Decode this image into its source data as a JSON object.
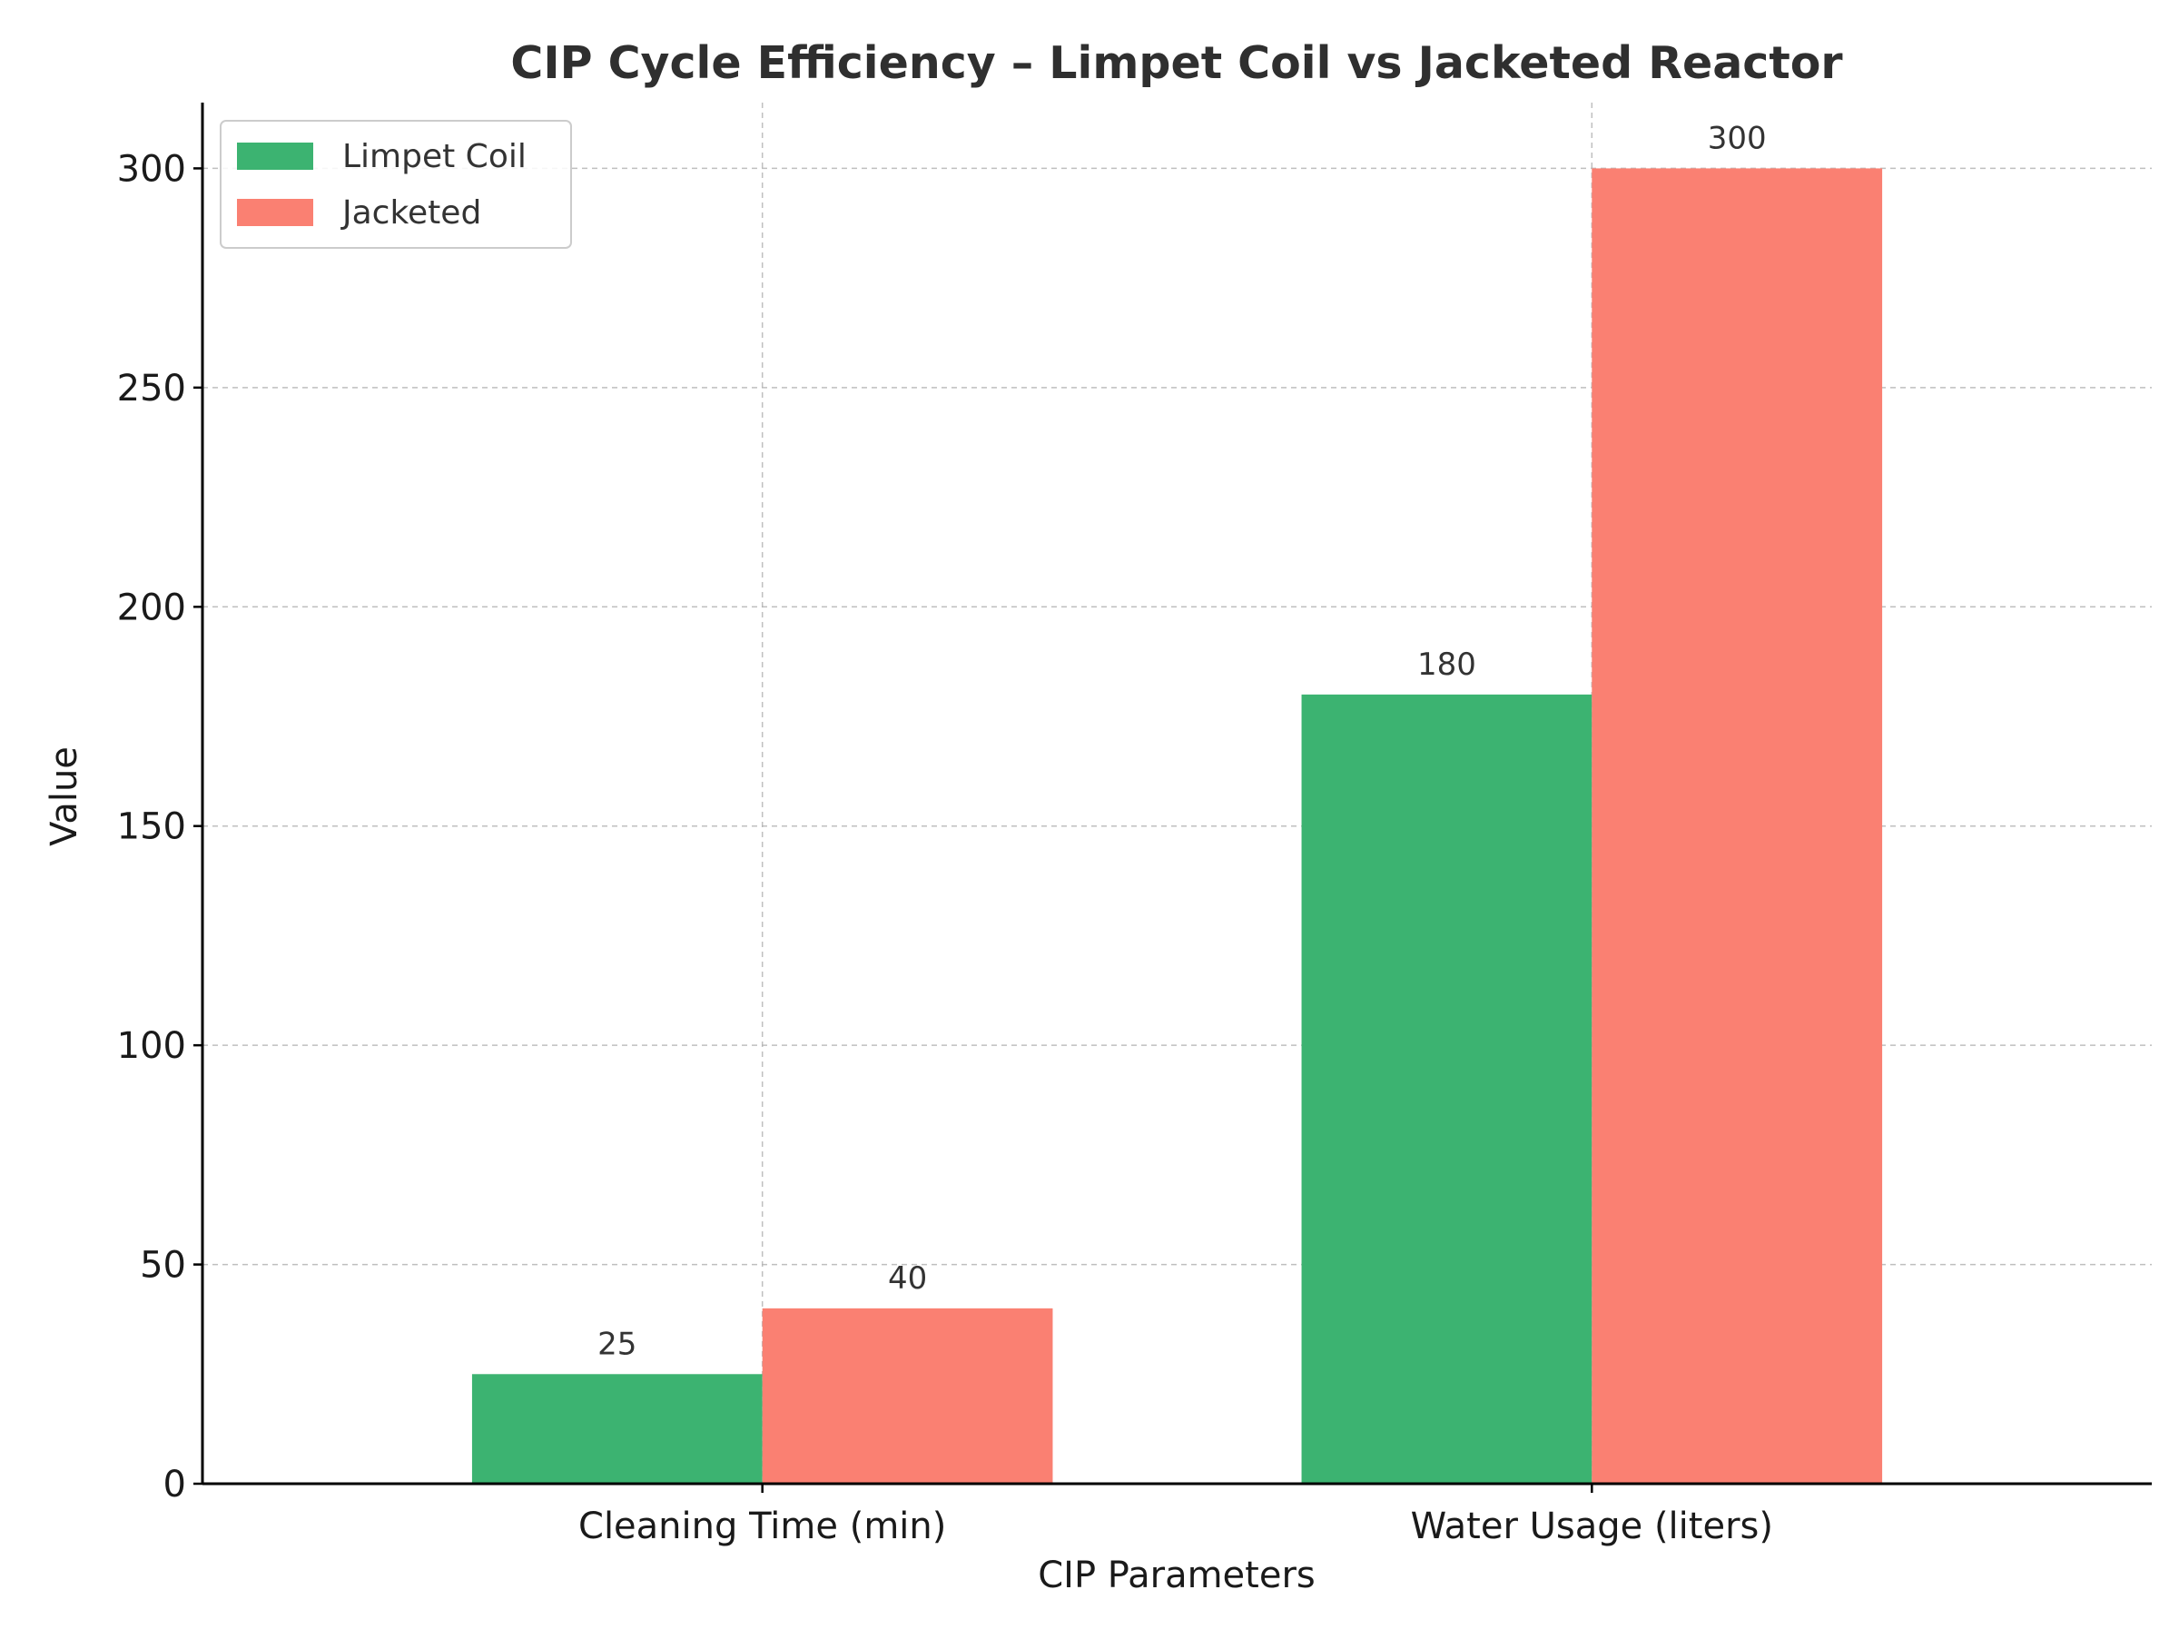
{
  "chart_data": {
    "type": "bar",
    "title": "CIP Cycle Efficiency – Limpet Coil vs Jacketed Reactor",
    "xlabel": "CIP Parameters",
    "ylabel": "Value",
    "categories": [
      "Cleaning Time (min)",
      "Water Usage (liters)"
    ],
    "series": [
      {
        "name": "Limpet Coil",
        "values": [
          25,
          180
        ],
        "color": "#3cb371"
      },
      {
        "name": "Jacketed",
        "values": [
          40,
          300
        ],
        "color": "#fa8072"
      }
    ],
    "ylim": [
      0,
      315
    ],
    "yticks": [
      0,
      50,
      100,
      150,
      200,
      250,
      300
    ],
    "grid": true,
    "legend_position": "top-left"
  }
}
